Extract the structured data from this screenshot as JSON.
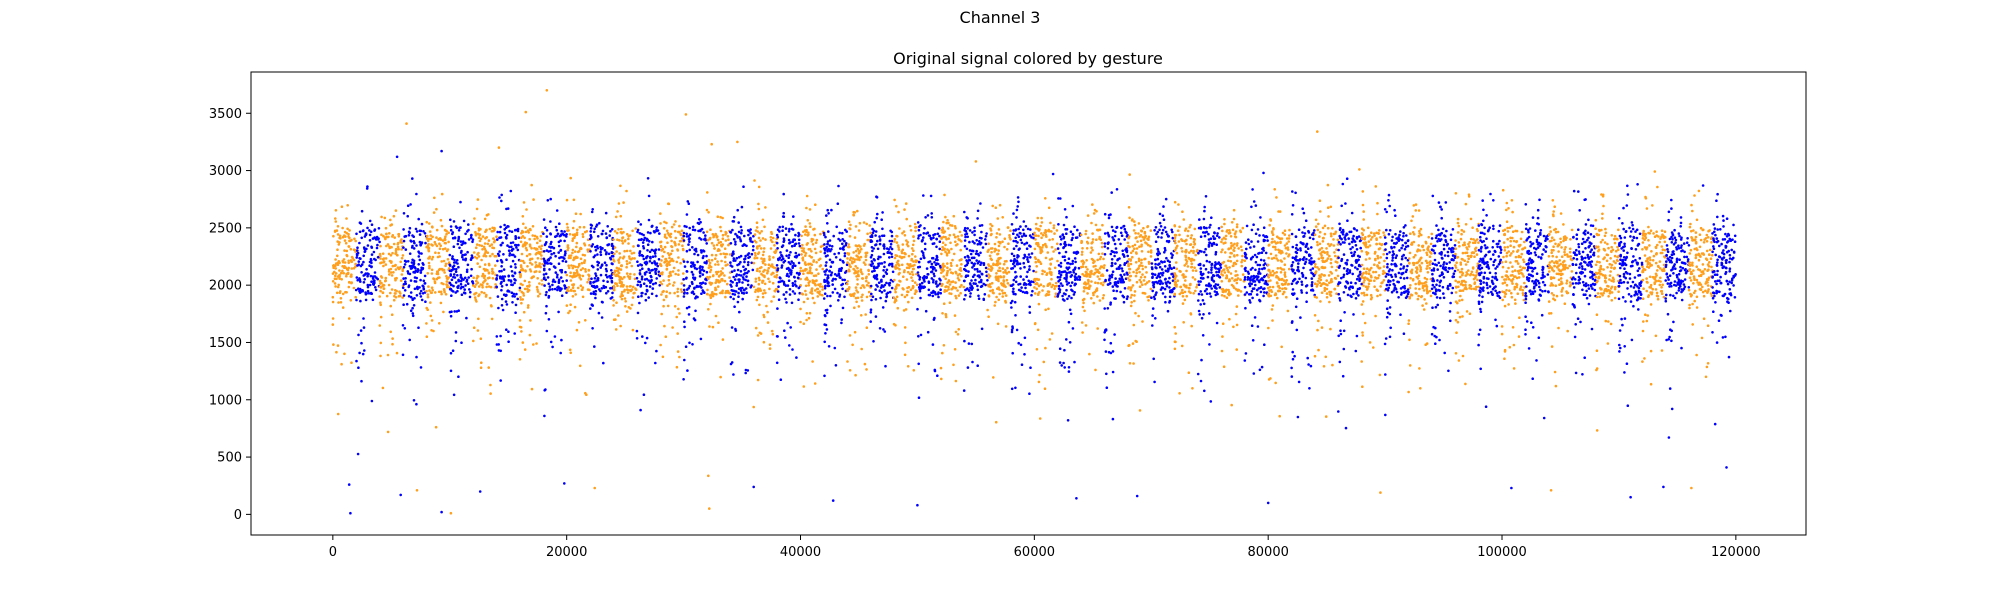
{
  "figure": {
    "suptitle": "Channel 3"
  },
  "chart_data": {
    "type": "scatter",
    "title": "Original signal colored by gesture",
    "xlabel": "",
    "ylabel": "",
    "xlim": [
      -7000,
      126000
    ],
    "ylim": [
      -180,
      3860
    ],
    "x_ticks": [
      0,
      20000,
      40000,
      60000,
      80000,
      100000,
      120000
    ],
    "y_ticks": [
      0,
      500,
      1000,
      1500,
      2000,
      2500,
      3000,
      3500
    ],
    "grid": false,
    "legend": "none",
    "x_range": [
      0,
      120000
    ],
    "baseline": 2200,
    "dense_band": [
      1900,
      2500
    ],
    "segment_length": 2000,
    "segment_colors": [
      "#ff9f1c",
      "#0000ff"
    ],
    "series": [
      {
        "color": "#ff9f1c",
        "values": "alternating 2000-sample segments (first segment)"
      },
      {
        "color": "#0000ff",
        "values": "alternating 2000-sample segments (second segment)"
      }
    ],
    "outliers": [
      {
        "x": 16500,
        "y": 3510,
        "c": 0
      },
      {
        "x": 18300,
        "y": 3700,
        "c": 0
      },
      {
        "x": 6300,
        "y": 3410,
        "c": 0
      },
      {
        "x": 30200,
        "y": 3490,
        "c": 0
      },
      {
        "x": 84200,
        "y": 3340,
        "c": 0
      },
      {
        "x": 9300,
        "y": 3170,
        "c": 1
      },
      {
        "x": 14200,
        "y": 3200,
        "c": 0
      },
      {
        "x": 34600,
        "y": 3250,
        "c": 0
      },
      {
        "x": 5500,
        "y": 3120,
        "c": 1
      },
      {
        "x": 32400,
        "y": 3230,
        "c": 0
      },
      {
        "x": 55000,
        "y": 3080,
        "c": 0
      },
      {
        "x": 61600,
        "y": 2970,
        "c": 1
      },
      {
        "x": 79600,
        "y": 2980,
        "c": 1
      },
      {
        "x": 87800,
        "y": 3010,
        "c": 0
      },
      {
        "x": 111600,
        "y": 2880,
        "c": 1
      },
      {
        "x": 117200,
        "y": 2870,
        "c": 1
      },
      {
        "x": 1500,
        "y": 10,
        "c": 1
      },
      {
        "x": 9300,
        "y": 20,
        "c": 1
      },
      {
        "x": 10100,
        "y": 10,
        "c": 0
      },
      {
        "x": 32200,
        "y": 50,
        "c": 0
      },
      {
        "x": 80000,
        "y": 100,
        "c": 1
      },
      {
        "x": 50000,
        "y": 80,
        "c": 1
      },
      {
        "x": 1400,
        "y": 260,
        "c": 1
      },
      {
        "x": 5800,
        "y": 170,
        "c": 1
      },
      {
        "x": 7200,
        "y": 210,
        "c": 0
      },
      {
        "x": 12600,
        "y": 200,
        "c": 1
      },
      {
        "x": 19800,
        "y": 270,
        "c": 1
      },
      {
        "x": 22400,
        "y": 230,
        "c": 0
      },
      {
        "x": 36000,
        "y": 240,
        "c": 1
      },
      {
        "x": 42800,
        "y": 120,
        "c": 1
      },
      {
        "x": 63600,
        "y": 140,
        "c": 1
      },
      {
        "x": 68800,
        "y": 160,
        "c": 1
      },
      {
        "x": 89600,
        "y": 190,
        "c": 0
      },
      {
        "x": 100800,
        "y": 230,
        "c": 1
      },
      {
        "x": 104200,
        "y": 210,
        "c": 0
      },
      {
        "x": 111000,
        "y": 150,
        "c": 1
      },
      {
        "x": 113800,
        "y": 240,
        "c": 1
      },
      {
        "x": 116200,
        "y": 230,
        "c": 0
      },
      {
        "x": 119200,
        "y": 410,
        "c": 1
      }
    ]
  }
}
